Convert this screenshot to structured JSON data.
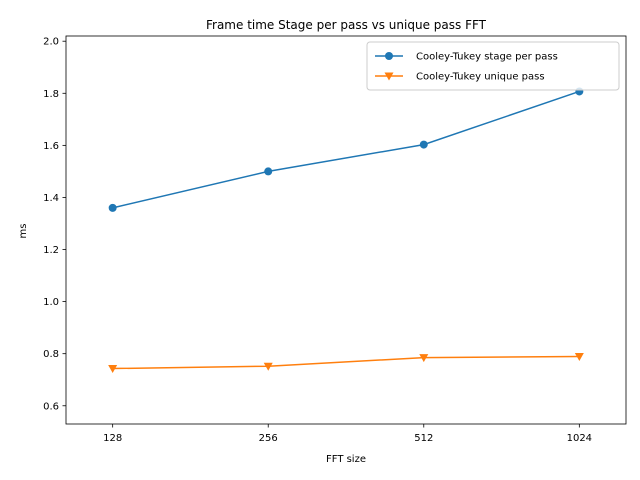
{
  "chart_data": {
    "type": "line",
    "title": "Frame time Stage per pass vs unique pass FFT",
    "xlabel": "FFT size",
    "ylabel": "ms",
    "categories": [
      "128",
      "256",
      "512",
      "1024"
    ],
    "ylim": [
      0.53,
      2.02
    ],
    "yticks": [
      "0.6",
      "0.8",
      "1.0",
      "1.2",
      "1.4",
      "1.6",
      "1.8",
      "2.0"
    ],
    "grid": false,
    "legend_position": "top-right",
    "series": [
      {
        "name": "Cooley-Tukey stage per pass",
        "values": [
          1.36,
          1.5,
          1.603,
          1.807
        ],
        "color": "#1f77b4",
        "marker": "circle"
      },
      {
        "name": "Cooley-Tukey unique pass",
        "values": [
          0.743,
          0.752,
          0.785,
          0.789
        ],
        "color": "#ff7f0e",
        "marker": "triangle-down"
      }
    ]
  }
}
